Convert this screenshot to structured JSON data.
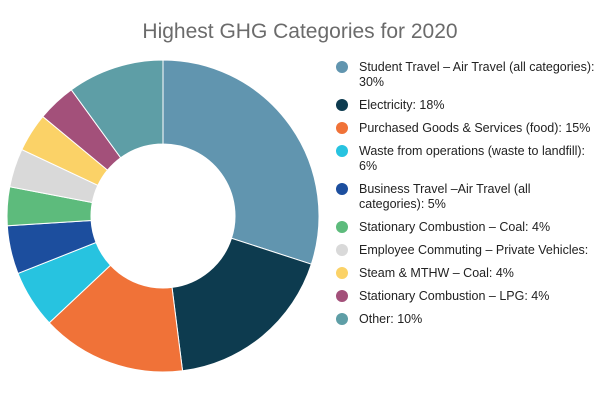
{
  "chart_data": {
    "type": "pie",
    "donut": true,
    "title": "Highest GHG Categories for 2020",
    "legend_position": "right",
    "slices": [
      {
        "label": "Student Travel – Air Travel (all categories): 30%",
        "value": 30,
        "color": "#6195af"
      },
      {
        "label": "Electricity: 18%",
        "value": 18,
        "color": "#0d3b4f"
      },
      {
        "label": "Purchased Goods & Services (food): 15%",
        "value": 15,
        "color": "#f07238"
      },
      {
        "label": "Waste from operations (waste to landfill): 6%",
        "value": 6,
        "color": "#27c3e0"
      },
      {
        "label": "Business Travel –Air Travel (all categories): 5%",
        "value": 5,
        "color": "#1c4e9e"
      },
      {
        "label": "Stationary Combustion – Coal: 4%",
        "value": 4,
        "color": "#5dbb7c"
      },
      {
        "label": "Employee Commuting – Private Vehicles:",
        "value": 4,
        "color": "#d9d9d9"
      },
      {
        "label": "Steam & MTHW – Coal: 4%",
        "value": 4,
        "color": "#fbd267"
      },
      {
        "label": "Stationary Combustion – LPG: 4%",
        "value": 4,
        "color": "#a3507a"
      },
      {
        "label": "Other: 10%",
        "value": 10,
        "color": "#5e9ea6"
      }
    ]
  }
}
